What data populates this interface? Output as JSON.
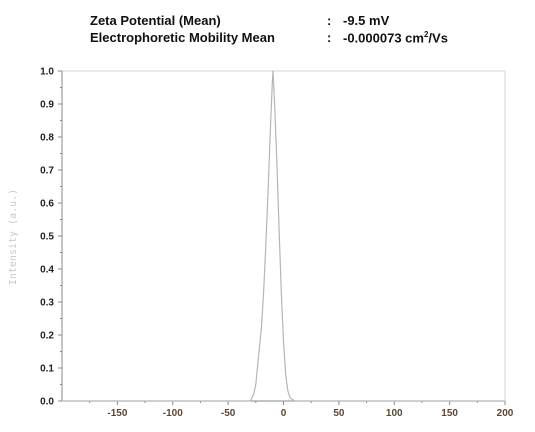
{
  "header": {
    "rows": [
      {
        "label": "Zeta Potential (Mean)",
        "sep": ":",
        "value": "-9.5 mV",
        "unit_sup": ""
      },
      {
        "label": "Electrophoretic Mobility Mean",
        "sep": ":",
        "value": "-0.000073 cm",
        "unit_sup": "2",
        "unit_rest": "/Vs"
      }
    ]
  },
  "chart_data": {
    "type": "line",
    "ylabel": "Intensity (a.u.)",
    "xlabel": "",
    "xlim": [
      -200,
      200
    ],
    "ylim": [
      0,
      1.0
    ],
    "x_ticks": [
      -150,
      -100,
      -50,
      0,
      50,
      100,
      150,
      200
    ],
    "y_ticks": [
      0.0,
      0.1,
      0.2,
      0.3,
      0.4,
      0.5,
      0.6,
      0.7,
      0.8,
      0.9,
      1.0
    ],
    "y_tick_labels": [
      "0.0",
      "0.1",
      "0.2",
      "0.3",
      "0.4",
      "0.5",
      "0.6",
      "0.7",
      "0.8",
      "0.9",
      "1.0"
    ],
    "grid": false,
    "colors": {
      "line": "#b5b5b5",
      "axis": "#888888",
      "frame": "#d4d4d4"
    },
    "series": [
      {
        "x": [
          -200,
          -30,
          -27,
          -25,
          -23,
          -20,
          -18,
          -16,
          -14,
          -12,
          -10,
          -9.5,
          -8,
          -6,
          -4,
          -2,
          0,
          2,
          4,
          6,
          8,
          10,
          200
        ],
        "y": [
          0,
          0,
          0.02,
          0.05,
          0.12,
          0.22,
          0.33,
          0.47,
          0.63,
          0.81,
          0.97,
          1.0,
          0.9,
          0.72,
          0.52,
          0.33,
          0.18,
          0.08,
          0.03,
          0.01,
          0.005,
          0,
          0
        ]
      }
    ]
  }
}
